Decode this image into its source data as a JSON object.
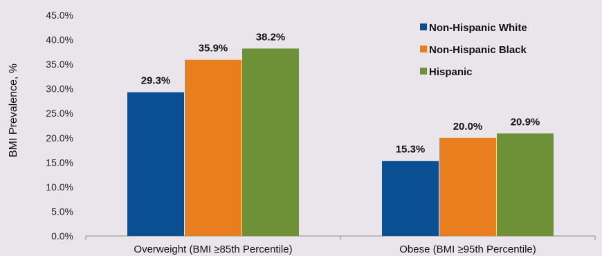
{
  "chart_data": {
    "type": "bar",
    "title": "",
    "xlabel": "",
    "ylabel": "BMI Prevalence, %",
    "ylim": [
      0,
      45
    ],
    "y_ticks": [
      "0.0%",
      "5.0%",
      "10.0%",
      "15.0%",
      "20.0%",
      "25.0%",
      "30.0%",
      "35.0%",
      "40.0%",
      "45.0%"
    ],
    "categories": [
      "Overweight (BMI ≥85th Percentile)",
      "Obese (BMI ≥95th Percentile)"
    ],
    "series": [
      {
        "name": "Non-Hispanic White",
        "values": [
          29.3,
          15.3
        ],
        "labels": [
          "29.3%",
          "15.3%"
        ],
        "color": "#0b4f93"
      },
      {
        "name": "Non-Hispanic Black",
        "values": [
          35.9,
          20.0
        ],
        "labels": [
          "35.9%",
          "20.0%"
        ],
        "color": "#e87e1e"
      },
      {
        "name": "Hispanic",
        "values": [
          38.2,
          20.9
        ],
        "labels": [
          "38.2%",
          "20.9%"
        ],
        "color": "#6e9138"
      }
    ],
    "legend_position": "top-right",
    "grid": false
  }
}
